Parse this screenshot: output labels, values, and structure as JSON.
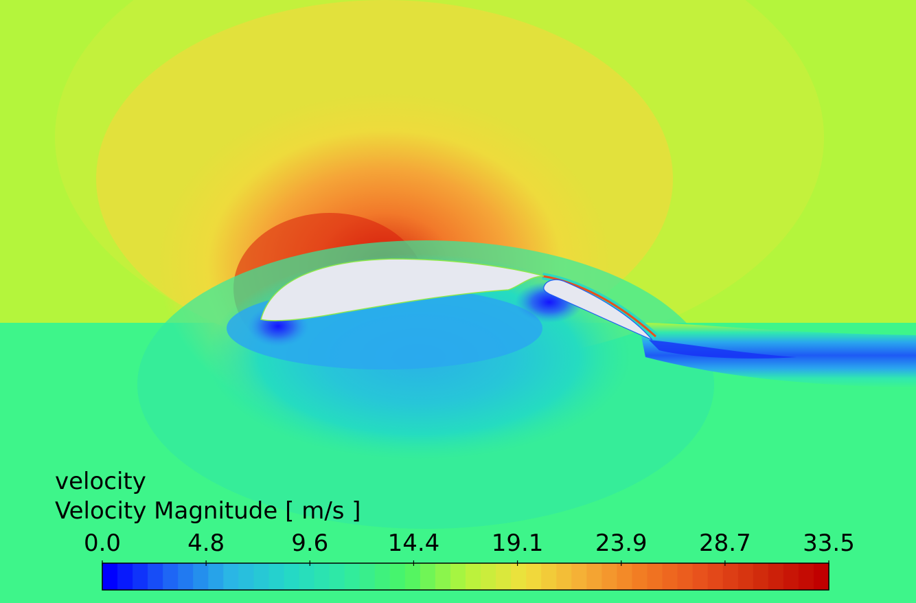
{
  "chart_data": {
    "type": "heatmap",
    "variable": "velocity",
    "quantity": "Velocity Magnitude",
    "unit": "[ m/s ]",
    "range": [
      0.0,
      33.5
    ],
    "tick_labels": [
      "0.0",
      "4.8",
      "9.6",
      "14.4",
      "19.1",
      "23.9",
      "28.7",
      "33.5"
    ],
    "colormap": {
      "levels": 48,
      "stops": [
        "#0000ff",
        "#1e64f5",
        "#2ab4e6",
        "#24d8c8",
        "#30eba0",
        "#4af565",
        "#b4f53c",
        "#f0e03c",
        "#f5ad35",
        "#f27a22",
        "#e8501c",
        "#d02a0c",
        "#c00000"
      ]
    },
    "freestream_color": "#b4f53c",
    "airfoil_fill": "#e6e8f0"
  }
}
